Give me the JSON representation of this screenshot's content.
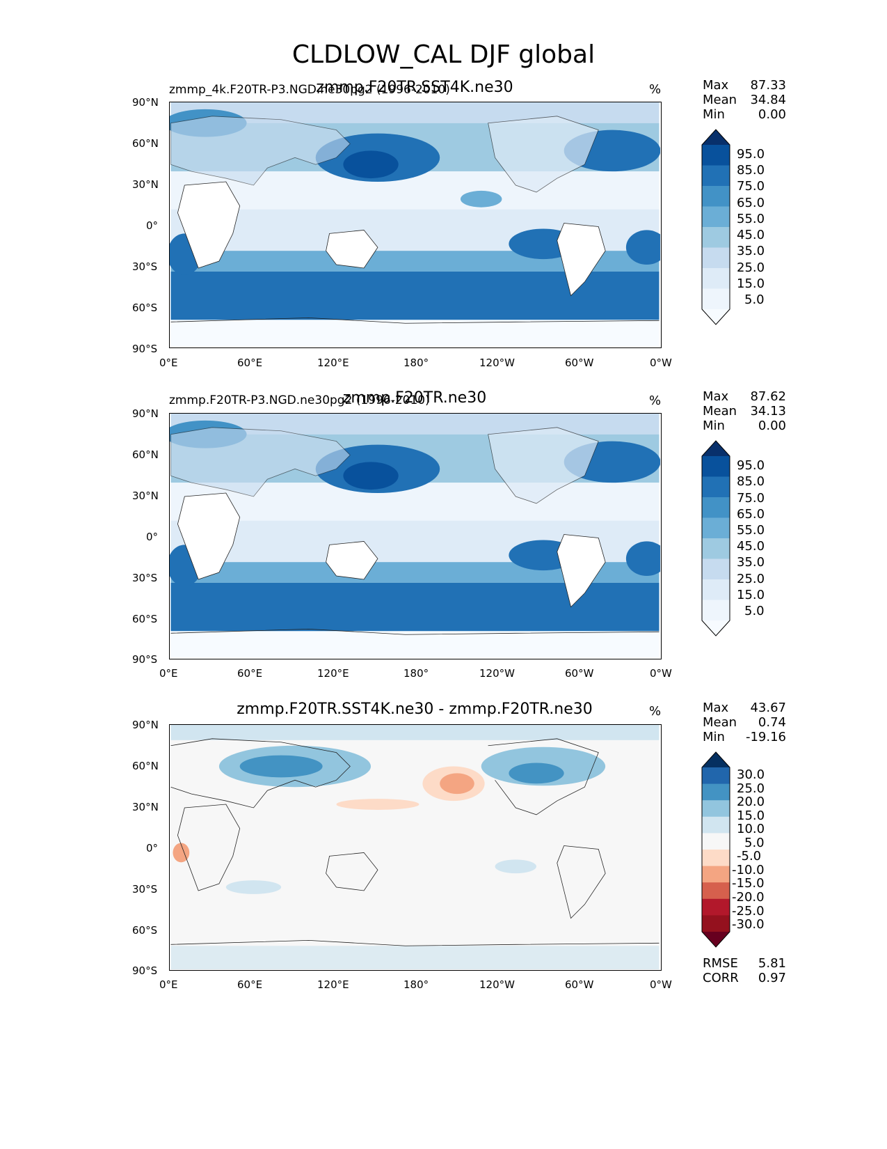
{
  "figure": {
    "title": "CLDLOW_CAL DJF global"
  },
  "panels": [
    {
      "id": "test",
      "title_left": "zmmp_4k.F20TR-P3.NGD.ne30pg2 (1996-2010)",
      "title_center": "zmmp.F20TR.SST4K.ne30",
      "units": "%",
      "stats": [
        {
          "label": "Max",
          "value": "87.33"
        },
        {
          "label": "Mean",
          "value": "34.84"
        },
        {
          "label": "Min",
          "value": "0.00"
        }
      ],
      "colorbar": {
        "labels": [
          "95.0",
          "85.0",
          "75.0",
          "65.0",
          "55.0",
          "45.0",
          "35.0",
          "25.0",
          "15.0",
          "5.0"
        ],
        "colors": [
          "#08306b",
          "#08519c",
          "#2171b5",
          "#4292c6",
          "#6baed6",
          "#9ecae1",
          "#c6dbef",
          "#deebf7",
          "#eef5fc",
          "#f7fbff"
        ]
      }
    },
    {
      "id": "reference",
      "title_left": "zmmp.F20TR-P3.NGD.ne30pg2 (1996-2010)",
      "title_center": "zmmp.F20TR.ne30",
      "units": "%",
      "stats": [
        {
          "label": "Max",
          "value": "87.62"
        },
        {
          "label": "Mean",
          "value": "34.13"
        },
        {
          "label": "Min",
          "value": "0.00"
        }
      ],
      "colorbar": {
        "labels": [
          "95.0",
          "85.0",
          "75.0",
          "65.0",
          "55.0",
          "45.0",
          "35.0",
          "25.0",
          "15.0",
          "5.0"
        ],
        "colors": [
          "#08306b",
          "#08519c",
          "#2171b5",
          "#4292c6",
          "#6baed6",
          "#9ecae1",
          "#c6dbef",
          "#deebf7",
          "#eef5fc",
          "#f7fbff"
        ]
      }
    },
    {
      "id": "difference",
      "title_left": "",
      "title_center": "zmmp.F20TR.SST4K.ne30 - zmmp.F20TR.ne30",
      "units": "%",
      "stats": [
        {
          "label": "Max",
          "value": "43.67"
        },
        {
          "label": "Mean",
          "value": "0.74"
        },
        {
          "label": "Min",
          "value": "-19.16"
        }
      ],
      "colorbar": {
        "labels": [
          "30.0",
          "25.0",
          "20.0",
          "15.0",
          "10.0",
          "5.0",
          "-5.0",
          "-10.0",
          "-15.0",
          "-20.0",
          "-25.0",
          "-30.0"
        ],
        "colors": [
          "#053061",
          "#2166ac",
          "#4393c3",
          "#92c5de",
          "#d1e5f0",
          "#f7f7f7",
          "#fddbc7",
          "#f4a582",
          "#d6604d",
          "#b2182b",
          "#94111e",
          "#67001f"
        ]
      },
      "metrics": [
        {
          "label": "RMSE",
          "value": "5.81"
        },
        {
          "label": "CORR",
          "value": "0.97"
        }
      ]
    }
  ],
  "axes": {
    "lat_ticks": [
      "90°N",
      "60°N",
      "30°N",
      "0°",
      "30°S",
      "60°S",
      "90°S"
    ],
    "lon_ticks": [
      "0°E",
      "60°E",
      "120°E",
      "180°",
      "120°W",
      "60°W",
      "0°W"
    ]
  }
}
